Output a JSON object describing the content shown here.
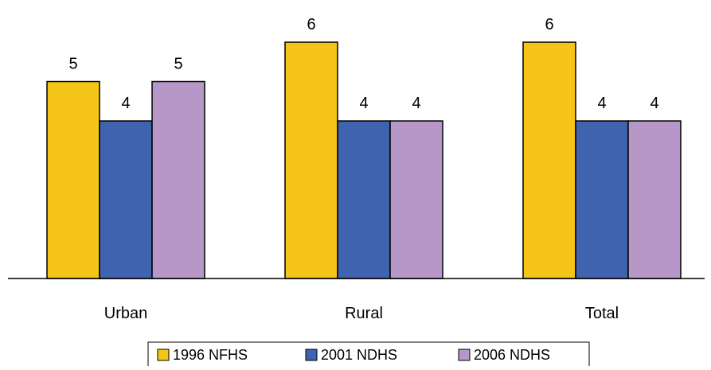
{
  "chart_data": {
    "type": "bar",
    "title": "",
    "xlabel": "",
    "ylabel": "",
    "categories": [
      "Urban",
      "Rural",
      "Total"
    ],
    "series": [
      {
        "name": "1996 NFHS",
        "values": [
          5,
          6,
          6
        ],
        "color": "#F5C518"
      },
      {
        "name": "2001 NDHS",
        "values": [
          4,
          4,
          4
        ],
        "color": "#3F63AF"
      },
      {
        "name": "2006 NDHS",
        "values": [
          5,
          4,
          4
        ],
        "color": "#B697C8"
      }
    ],
    "ylim": [
      0,
      6
    ],
    "grid": false,
    "legend_position": "bottom",
    "data_labels": true
  }
}
